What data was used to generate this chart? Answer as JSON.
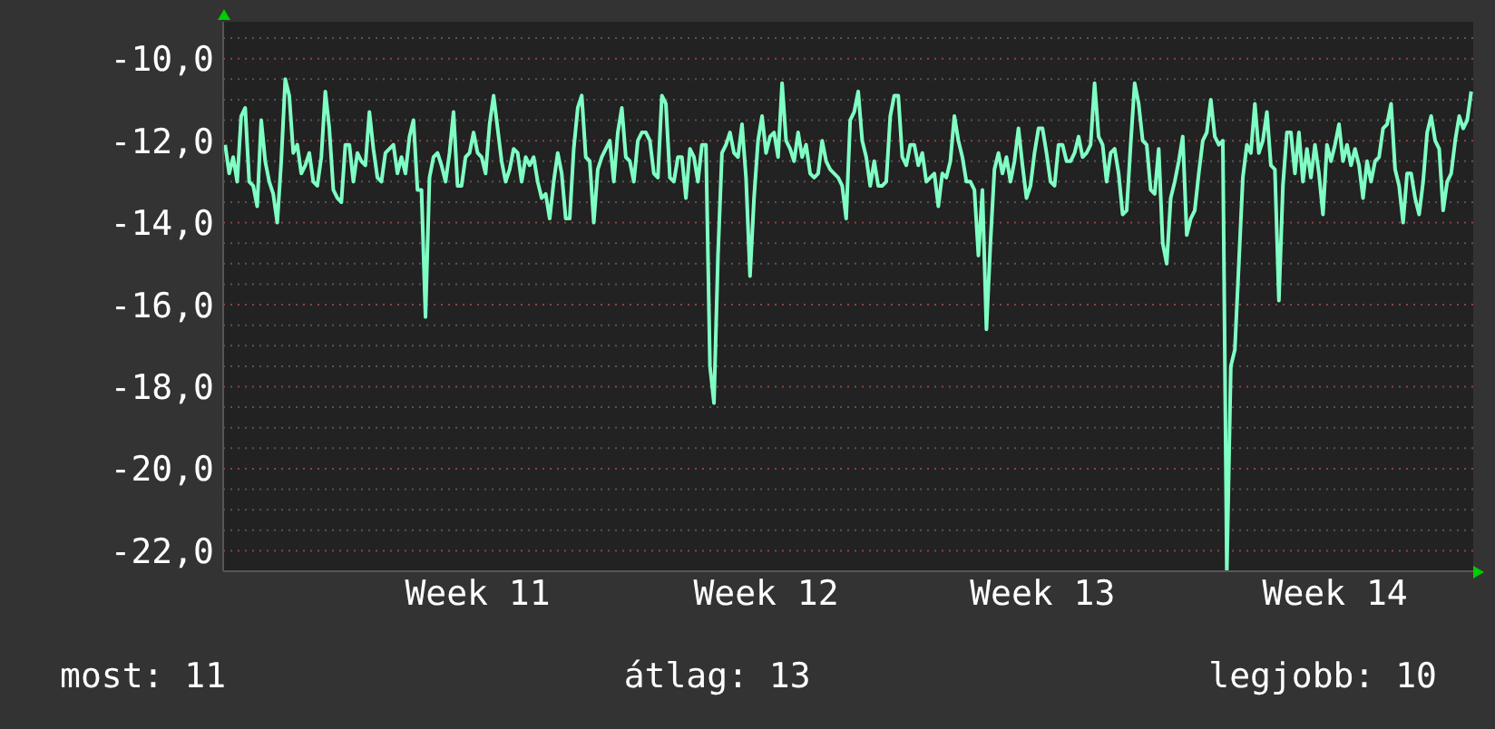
{
  "chart_data": {
    "type": "line",
    "categories": [
      null,
      null,
      null,
      null,
      null,
      null,
      null,
      null,
      null,
      null,
      null,
      null,
      null,
      null,
      null,
      null,
      null,
      null,
      null,
      null,
      null,
      null,
      null,
      null,
      null,
      null,
      null,
      null,
      null,
      null,
      null,
      null,
      null,
      null,
      null,
      null,
      null,
      null,
      null,
      null,
      null,
      null,
      null,
      null,
      null,
      null,
      null,
      null,
      null,
      null,
      null,
      null,
      null,
      null,
      null,
      null,
      null,
      null,
      null,
      null,
      null,
      null,
      null,
      "Week 11",
      null,
      null,
      null,
      null,
      null,
      null,
      null,
      null,
      null,
      null,
      null,
      null,
      null,
      null,
      null,
      null,
      null,
      null,
      null,
      null,
      null,
      null,
      null,
      null,
      null,
      null,
      null,
      null,
      null,
      null,
      null,
      null,
      null,
      null,
      null,
      null,
      null,
      null,
      null,
      null,
      null,
      null,
      null,
      null,
      null,
      null,
      null,
      null,
      null,
      null,
      null,
      null,
      null,
      null,
      null,
      null,
      null,
      null,
      null,
      null,
      null,
      null,
      null,
      null,
      null,
      null,
      null,
      null,
      null,
      null,
      null,
      "Week 12",
      null,
      null,
      null,
      null,
      null,
      null,
      null,
      null,
      null,
      null,
      null,
      null,
      null,
      null,
      null,
      null,
      null,
      null,
      null,
      null,
      null,
      null,
      null,
      null,
      null,
      null,
      null,
      null,
      null,
      null,
      null,
      null,
      null,
      null,
      null,
      null,
      null,
      null,
      null,
      null,
      null,
      null,
      null,
      null,
      null,
      null,
      null,
      null,
      null,
      null,
      null,
      null,
      null,
      null,
      null,
      null,
      null,
      null,
      null,
      null,
      null,
      null,
      null,
      null,
      null,
      null,
      null,
      null,
      "Week 13",
      null,
      null,
      null,
      null,
      null,
      null,
      null,
      null,
      null,
      null,
      null,
      null,
      null,
      null,
      null,
      null,
      null,
      null,
      null,
      null,
      null,
      null,
      null,
      null,
      null,
      null,
      null,
      null,
      null,
      null,
      null,
      null,
      null,
      null,
      null,
      null,
      null,
      null,
      null,
      null,
      null,
      null,
      null,
      null,
      null,
      null,
      null,
      null,
      null,
      null,
      null,
      null,
      null,
      null,
      null,
      null,
      null,
      null,
      null,
      null,
      null,
      null,
      null,
      null,
      null,
      null,
      null,
      null,
      null,
      null,
      null,
      null,
      "Week 14",
      null,
      null,
      null,
      null,
      null,
      null,
      null,
      null,
      null,
      null,
      null,
      null,
      null,
      null,
      null,
      null,
      null,
      null,
      null,
      null,
      null,
      null,
      null,
      null,
      null,
      null,
      null,
      null,
      null,
      null,
      null,
      null,
      null,
      null
    ],
    "series": [
      {
        "color": "#7fffc4",
        "values": [
          -12.1,
          -12.8,
          -12.4,
          -13.0,
          -11.4,
          -11.2,
          -13.0,
          -13.1,
          -13.6,
          -11.5,
          -12.5,
          -13.0,
          -13.3,
          -14.0,
          -12.5,
          -10.5,
          -10.9,
          -12.3,
          -12.1,
          -12.8,
          -12.6,
          -12.3,
          -13.0,
          -13.1,
          -12.4,
          -10.8,
          -11.7,
          -13.2,
          -13.4,
          -13.5,
          -12.1,
          -12.1,
          -13.0,
          -12.3,
          -12.5,
          -12.6,
          -11.3,
          -12.2,
          -12.9,
          -13.0,
          -12.3,
          -12.2,
          -12.1,
          -12.8,
          -12.4,
          -12.8,
          -11.9,
          -11.5,
          -13.2,
          -13.2,
          -16.3,
          -12.9,
          -12.4,
          -12.3,
          -12.6,
          -13.0,
          -12.3,
          -11.3,
          -13.1,
          -13.1,
          -12.4,
          -12.3,
          -11.8,
          -12.3,
          -12.4,
          -12.8,
          -11.6,
          -10.9,
          -11.7,
          -12.5,
          -13.0,
          -12.7,
          -12.2,
          -12.3,
          -13.0,
          -12.4,
          -12.6,
          -12.4,
          -13.0,
          -13.4,
          -13.3,
          -13.9,
          -13.0,
          -12.3,
          -12.8,
          -13.9,
          -13.9,
          -12.2,
          -11.2,
          -10.9,
          -12.4,
          -12.5,
          -14.0,
          -12.7,
          -12.4,
          -12.2,
          -12.0,
          -13.0,
          -11.8,
          -11.2,
          -12.4,
          -12.5,
          -13.0,
          -12.0,
          -11.8,
          -11.8,
          -12.0,
          -12.8,
          -12.9,
          -10.9,
          -11.1,
          -12.9,
          -13.0,
          -12.4,
          -12.4,
          -13.4,
          -12.2,
          -12.4,
          -13.0,
          -12.1,
          -12.1,
          -17.5,
          -18.4,
          -14.8,
          -12.3,
          -12.1,
          -11.8,
          -12.3,
          -12.4,
          -11.6,
          -12.9,
          -15.3,
          -13.4,
          -12.0,
          -11.4,
          -12.3,
          -11.9,
          -11.8,
          -12.4,
          -10.6,
          -12.0,
          -12.2,
          -12.5,
          -11.8,
          -12.4,
          -12.1,
          -12.8,
          -12.9,
          -12.8,
          -12.0,
          -12.5,
          -12.7,
          -12.8,
          -12.9,
          -13.1,
          -13.9,
          -11.5,
          -11.3,
          -10.8,
          -12.0,
          -12.4,
          -13.1,
          -12.5,
          -13.1,
          -13.1,
          -13.0,
          -11.4,
          -10.9,
          -10.9,
          -12.4,
          -12.6,
          -12.1,
          -12.1,
          -12.6,
          -12.3,
          -13.0,
          -12.9,
          -12.8,
          -13.6,
          -12.8,
          -12.9,
          -12.5,
          -11.4,
          -12.0,
          -12.4,
          -13.0,
          -13.0,
          -13.2,
          -14.8,
          -13.2,
          -16.6,
          -14.5,
          -12.7,
          -12.3,
          -12.8,
          -12.4,
          -13.0,
          -12.5,
          -11.7,
          -12.6,
          -13.4,
          -13.1,
          -12.3,
          -11.7,
          -11.7,
          -12.3,
          -13.0,
          -13.1,
          -12.1,
          -12.1,
          -12.5,
          -12.5,
          -12.3,
          -11.9,
          -12.4,
          -12.3,
          -12.1,
          -10.6,
          -11.9,
          -12.1,
          -13.0,
          -12.3,
          -12.2,
          -12.8,
          -13.8,
          -13.7,
          -12.1,
          -10.6,
          -11.1,
          -12.0,
          -12.1,
          -13.2,
          -13.3,
          -12.2,
          -14.5,
          -15.0,
          -13.4,
          -13.0,
          -12.5,
          -11.9,
          -14.3,
          -13.9,
          -13.7,
          -12.8,
          -12.0,
          -11.8,
          -11.0,
          -11.9,
          -12.1,
          -12.0,
          -22.5,
          -17.5,
          -17.1,
          -15.0,
          -12.9,
          -12.1,
          -12.3,
          -11.1,
          -12.3,
          -12.0,
          -11.3,
          -12.6,
          -12.7,
          -15.9,
          -13.1,
          -11.8,
          -11.8,
          -12.8,
          -11.8,
          -13.0,
          -12.2,
          -12.9,
          -12.1,
          -12.8,
          -13.8,
          -12.1,
          -12.5,
          -12.1,
          -11.6,
          -12.5,
          -12.1,
          -12.6,
          -12.2,
          -12.6,
          -13.4,
          -12.5,
          -13.0,
          -12.5,
          -12.4,
          -11.7,
          -11.6,
          -11.1,
          -12.7,
          -13.1,
          -14.0,
          -12.8,
          -12.8,
          -13.4,
          -13.8,
          -13.0,
          -11.8,
          -11.4,
          -12.0,
          -12.2,
          -13.7,
          -13.0,
          -12.8,
          -12.0,
          -11.4,
          -11.7,
          -11.5,
          -10.8
        ]
      }
    ],
    "ylim": [
      -22.5,
      -9.1
    ],
    "yticks": [
      {
        "value": -22,
        "label": "-22,0"
      },
      {
        "value": -21.5,
        "label": null
      },
      {
        "value": -21,
        "label": null
      },
      {
        "value": -20.5,
        "label": null
      },
      {
        "value": -20,
        "label": "-20,0"
      },
      {
        "value": -19.5,
        "label": null
      },
      {
        "value": -19,
        "label": null
      },
      {
        "value": -18.5,
        "label": null
      },
      {
        "value": -18,
        "label": "-18,0"
      },
      {
        "value": -17.5,
        "label": null
      },
      {
        "value": -17,
        "label": null
      },
      {
        "value": -16.5,
        "label": null
      },
      {
        "value": -16,
        "label": "-16,0"
      },
      {
        "value": -15.5,
        "label": null
      },
      {
        "value": -15,
        "label": null
      },
      {
        "value": -14.5,
        "label": null
      },
      {
        "value": -14,
        "label": "-14,0"
      },
      {
        "value": -13.5,
        "label": null
      },
      {
        "value": -13,
        "label": null
      },
      {
        "value": -12.5,
        "label": null
      },
      {
        "value": -12,
        "label": "-12,0"
      },
      {
        "value": -11.5,
        "label": null
      },
      {
        "value": -11,
        "label": null
      },
      {
        "value": -10.5,
        "label": null
      },
      {
        "value": -10,
        "label": "-10,0"
      },
      {
        "value": -9.5,
        "label": null
      }
    ],
    "grid": "y",
    "marker": "none",
    "annotations": [
      "most: 11",
      "átlag: 13",
      "legjobb: 10"
    ]
  }
}
